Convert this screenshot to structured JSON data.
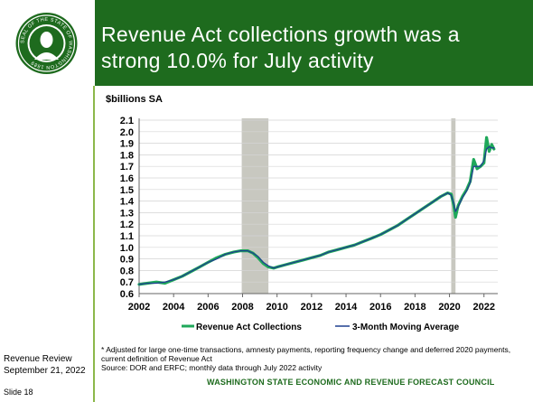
{
  "header": {
    "title_line1": "Revenue Act collections growth was a",
    "title_line2": "strong 10.0% for July activity",
    "seal_text": "SEAL OF THE STATE OF WASHINGTON 1889"
  },
  "sidebar": {
    "review": "Revenue Review",
    "date": "September 21, 2022",
    "slide": "Slide 18"
  },
  "footer": {
    "footnote": "* Adjusted for large one-time transactions, amnesty payments, reporting frequency change and deferred 2020 payments, current definition of Revenue Act",
    "source": "Source: DOR and ERFC; monthly data through July 2022 activity",
    "council": "WASHINGTON STATE ECONOMIC AND REVENUE FORECAST COUNCIL"
  },
  "colors": {
    "header_green": "#1e6b1e",
    "collections": "#1fa85a",
    "moving_average": "#1f3f8f",
    "recession": "#c8c8c0"
  },
  "chart_data": {
    "type": "line",
    "ylabel": "$billions SA",
    "xlim": [
      2002,
      2022.8
    ],
    "ylim": [
      0.6,
      2.1
    ],
    "x_ticks": [
      2002,
      2004,
      2006,
      2008,
      2010,
      2012,
      2014,
      2016,
      2018,
      2020,
      2022
    ],
    "x_tick_labels": [
      "2002",
      "2004",
      "2006",
      "2008",
      "2010",
      "2012",
      "2014",
      "2016",
      "2018",
      "2020",
      "2022"
    ],
    "y_ticks": [
      0.6,
      0.7,
      0.8,
      0.9,
      1.0,
      1.1,
      1.2,
      1.3,
      1.4,
      1.5,
      1.6,
      1.7,
      1.8,
      1.9,
      2.0,
      2.1
    ],
    "y_tick_labels": [
      "0.6",
      "0.7",
      "0.8",
      "0.9",
      "1.0",
      "1.1",
      "1.2",
      "1.3",
      "1.4",
      "1.5",
      "1.6",
      "1.7",
      "1.8",
      "1.9",
      "2.0",
      "2.1"
    ],
    "recessions": [
      [
        2007.95,
        2009.5
      ],
      [
        2020.1,
        2020.35
      ]
    ],
    "grid": true,
    "legend_position": "bottom",
    "series": [
      {
        "name": "Revenue Act Collections",
        "x": [
          2002.0,
          2002.5,
          2003.0,
          2003.5,
          2004.0,
          2004.5,
          2005.0,
          2005.5,
          2006.0,
          2006.5,
          2007.0,
          2007.5,
          2007.9,
          2008.3,
          2008.6,
          2008.9,
          2009.2,
          2009.5,
          2009.8,
          2010.0,
          2010.5,
          2011.0,
          2011.5,
          2012.0,
          2012.5,
          2013.0,
          2013.5,
          2014.0,
          2014.5,
          2015.0,
          2015.5,
          2016.0,
          2016.5,
          2017.0,
          2017.5,
          2018.0,
          2018.5,
          2019.0,
          2019.5,
          2019.9,
          2020.1,
          2020.25,
          2020.35,
          2020.5,
          2020.75,
          2021.0,
          2021.2,
          2021.4,
          2021.6,
          2021.8,
          2022.0,
          2022.15,
          2022.3,
          2022.45,
          2022.58
        ],
        "y": [
          0.68,
          0.69,
          0.7,
          0.69,
          0.72,
          0.75,
          0.79,
          0.83,
          0.87,
          0.91,
          0.94,
          0.96,
          0.97,
          0.97,
          0.95,
          0.91,
          0.86,
          0.83,
          0.82,
          0.83,
          0.85,
          0.87,
          0.89,
          0.91,
          0.93,
          0.96,
          0.98,
          1.0,
          1.02,
          1.05,
          1.08,
          1.11,
          1.15,
          1.19,
          1.24,
          1.29,
          1.34,
          1.39,
          1.44,
          1.47,
          1.46,
          1.36,
          1.26,
          1.36,
          1.44,
          1.5,
          1.57,
          1.76,
          1.68,
          1.7,
          1.73,
          1.95,
          1.83,
          1.89,
          1.85
        ]
      },
      {
        "name": "3-Month Moving Average",
        "x": [
          2002.0,
          2002.5,
          2003.0,
          2003.5,
          2004.0,
          2004.5,
          2005.0,
          2005.5,
          2006.0,
          2006.5,
          2007.0,
          2007.5,
          2007.9,
          2008.3,
          2008.6,
          2008.9,
          2009.2,
          2009.5,
          2009.8,
          2010.0,
          2010.5,
          2011.0,
          2011.5,
          2012.0,
          2012.5,
          2013.0,
          2013.5,
          2014.0,
          2014.5,
          2015.0,
          2015.5,
          2016.0,
          2016.5,
          2017.0,
          2017.5,
          2018.0,
          2018.5,
          2019.0,
          2019.5,
          2019.9,
          2020.1,
          2020.25,
          2020.35,
          2020.5,
          2020.75,
          2021.0,
          2021.2,
          2021.4,
          2021.6,
          2021.8,
          2022.0,
          2022.15,
          2022.3,
          2022.45,
          2022.58
        ],
        "y": [
          0.68,
          0.69,
          0.69,
          0.7,
          0.72,
          0.75,
          0.79,
          0.83,
          0.87,
          0.9,
          0.94,
          0.96,
          0.97,
          0.97,
          0.95,
          0.92,
          0.87,
          0.84,
          0.82,
          0.83,
          0.85,
          0.87,
          0.89,
          0.91,
          0.93,
          0.96,
          0.98,
          1.0,
          1.02,
          1.05,
          1.08,
          1.11,
          1.15,
          1.19,
          1.24,
          1.29,
          1.34,
          1.39,
          1.44,
          1.47,
          1.45,
          1.38,
          1.31,
          1.35,
          1.43,
          1.49,
          1.56,
          1.7,
          1.7,
          1.7,
          1.75,
          1.85,
          1.87,
          1.86,
          1.86
        ]
      }
    ]
  }
}
